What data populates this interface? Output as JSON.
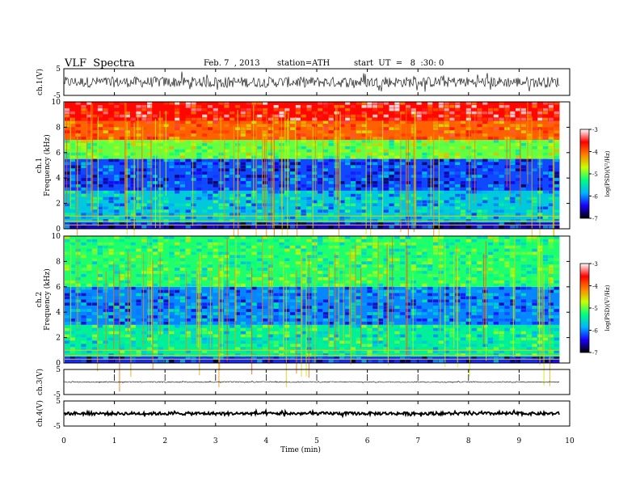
{
  "header": {
    "title": "VLF  Spectra",
    "date": "Feb. 7  , 2013",
    "station": "station=ATH",
    "start_ut": "start  UT  =   8  :30: 0"
  },
  "chart_data": [
    {
      "type": "line",
      "panel": "ch1-waveform",
      "ylabel": "ch.1(V)",
      "ylim": [
        -5,
        5
      ],
      "yticks": [
        "5",
        "-5"
      ],
      "xlim": [
        0,
        10
      ],
      "x_end": 9.8,
      "series": [
        {
          "values_range": [
            -2,
            2
          ],
          "color": "#000000"
        }
      ]
    },
    {
      "type": "heatmap",
      "panel": "ch1-spectrogram",
      "ylabel_line1": "ch.1",
      "ylabel_line2": "Frequency  (kHz)",
      "ylim": [
        0,
        10
      ],
      "yticks": [
        "0",
        "2",
        "4",
        "6",
        "8",
        "10"
      ],
      "xlim": [
        0,
        10
      ],
      "x_end": 9.8,
      "colorbar": {
        "label": "log(PSD)(V²/Hz)",
        "range": [
          -7,
          -3
        ],
        "ticks": [
          "-3",
          "-4",
          "-5",
          "-6",
          "-7"
        ]
      },
      "bands_khz": [
        {
          "from": 0,
          "to": 0.5,
          "level": -6.5
        },
        {
          "from": 0.5,
          "to": 3.0,
          "level": -5.7
        },
        {
          "from": 3.0,
          "to": 5.5,
          "level": -6.2
        },
        {
          "from": 5.5,
          "to": 7.0,
          "level": -5.0
        },
        {
          "from": 7.0,
          "to": 8.5,
          "level": -4.0
        },
        {
          "from": 8.5,
          "to": 10,
          "level": -3.6
        }
      ]
    },
    {
      "type": "heatmap",
      "panel": "ch2-spectrogram",
      "ylabel_line1": "ch.2",
      "ylabel_line2": "Frequency  (kHz)",
      "ylim": [
        0,
        10
      ],
      "yticks": [
        "0",
        "2",
        "4",
        "6",
        "8",
        "10"
      ],
      "xlim": [
        0,
        10
      ],
      "x_end": 9.8,
      "colorbar": {
        "label": "log(PSD)(V²/Hz)",
        "range": [
          -7,
          -3
        ],
        "ticks": [
          "-3",
          "-4",
          "-5",
          "-6",
          "-7"
        ]
      },
      "bands_khz": [
        {
          "from": 0,
          "to": 0.5,
          "level": -6.3
        },
        {
          "from": 0.5,
          "to": 3.0,
          "level": -5.4
        },
        {
          "from": 3.0,
          "to": 6.0,
          "level": -6.0
        },
        {
          "from": 6.0,
          "to": 10,
          "level": -5.2
        }
      ]
    },
    {
      "type": "line",
      "panel": "ch3-waveform",
      "ylabel": "ch.3(V)",
      "ylim": [
        -5,
        5
      ],
      "yticks": [
        "5",
        "-5"
      ],
      "xlim": [
        0,
        10
      ],
      "x_end": 9.8,
      "series": [
        {
          "values_range": [
            -0.2,
            0.2
          ],
          "color": "#000000"
        }
      ]
    },
    {
      "type": "line",
      "panel": "ch4-waveform",
      "ylabel": "ch.4(V)",
      "ylim": [
        -5,
        5
      ],
      "yticks": [
        "5",
        "-5"
      ],
      "xlim": [
        0,
        10
      ],
      "x_end": 9.8,
      "series": [
        {
          "values_range": [
            -0.6,
            0.6
          ],
          "color": "#000000"
        }
      ]
    }
  ],
  "x_axis": {
    "label": "Time  (min)",
    "ticks": [
      "0",
      "1",
      "2",
      "3",
      "4",
      "5",
      "6",
      "7",
      "8",
      "9",
      "10"
    ]
  },
  "colors": {
    "colormap": [
      "#000000",
      "#1a00ff",
      "#00b4ff",
      "#00ff80",
      "#c8ff00",
      "#ff8000",
      "#ff0000",
      "#ffffff"
    ]
  }
}
